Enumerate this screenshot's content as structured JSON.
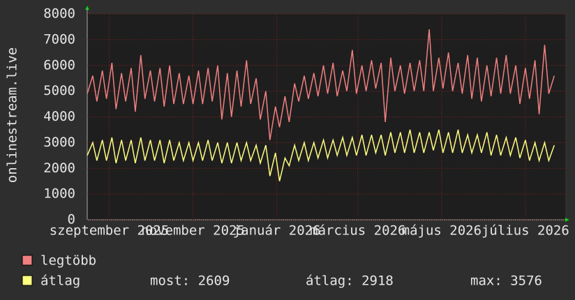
{
  "chart_data": {
    "type": "line",
    "y_label": "onlinestream.live",
    "x": [
      0,
      4,
      7,
      11,
      14,
      18,
      21,
      25,
      28,
      32,
      35,
      39,
      42,
      46,
      49,
      53,
      56,
      60,
      63,
      67,
      70,
      74,
      77,
      81,
      84,
      88,
      91,
      95,
      98,
      102,
      105,
      109,
      112,
      116,
      119,
      123,
      126,
      130,
      133,
      137,
      140,
      144,
      147,
      151,
      154,
      158,
      161,
      165,
      168,
      172,
      175,
      179,
      182,
      186,
      189,
      193,
      196,
      200,
      203,
      207,
      210,
      214,
      217,
      221,
      224,
      228,
      231,
      235,
      238,
      242,
      245,
      249,
      252,
      256,
      259,
      263,
      266,
      270,
      273,
      277,
      280,
      284,
      287,
      291,
      294,
      298,
      301,
      305,
      308,
      312,
      315,
      319,
      322,
      326,
      329,
      333,
      336,
      340
    ],
    "xlim": [
      0,
      348
    ],
    "xticks": [
      {
        "value": 16,
        "label": "szeptember 2025"
      },
      {
        "value": 77,
        "label": "november 2025"
      },
      {
        "value": 138,
        "label": "január 2026"
      },
      {
        "value": 197,
        "label": "március 2026"
      },
      {
        "value": 258,
        "label": "május 2026"
      },
      {
        "value": 319,
        "label": "július 2026"
      }
    ],
    "ylim": [
      0,
      8000
    ],
    "yticks": [
      0,
      1000,
      2000,
      3000,
      4000,
      5000,
      6000,
      7000,
      8000
    ],
    "grid": true,
    "series": [
      {
        "name": "legtöbb",
        "color": "#f08080",
        "values": [
          4900,
          5600,
          4600,
          5800,
          4700,
          6100,
          4300,
          5700,
          4600,
          5900,
          4200,
          6400,
          4700,
          5800,
          4600,
          5900,
          4400,
          6000,
          4500,
          5700,
          4500,
          5600,
          4500,
          5800,
          4500,
          5900,
          4600,
          6000,
          3900,
          5700,
          4000,
          5800,
          4400,
          6200,
          4500,
          5500,
          3900,
          5000,
          3100,
          4400,
          3600,
          4800,
          3800,
          5300,
          4600,
          5600,
          4700,
          5700,
          4800,
          6000,
          4900,
          6100,
          4800,
          5800,
          5000,
          6600,
          4900,
          6000,
          5000,
          6200,
          5100,
          6100,
          3800,
          6300,
          5000,
          6000,
          4900,
          6100,
          5000,
          6200,
          5000,
          7400,
          5000,
          6300,
          5100,
          6500,
          5000,
          6100,
          4900,
          6400,
          4700,
          6300,
          4600,
          6000,
          4800,
          6300,
          4900,
          6400,
          4900,
          6000,
          4500,
          5900,
          4700,
          6200,
          4100,
          6800,
          4900,
          5600
        ]
      },
      {
        "name": "átlag",
        "color": "#ffff80",
        "values": [
          2500,
          3000,
          2300,
          3100,
          2300,
          3200,
          2200,
          3100,
          2300,
          3100,
          2200,
          3200,
          2300,
          3100,
          2300,
          3100,
          2200,
          3100,
          2300,
          3000,
          2300,
          3000,
          2300,
          3000,
          2300,
          3100,
          2300,
          3000,
          2200,
          3000,
          2200,
          3000,
          2300,
          3000,
          2300,
          2900,
          2200,
          2900,
          1700,
          2600,
          1500,
          2400,
          2100,
          2900,
          2300,
          3000,
          2300,
          3000,
          2400,
          3100,
          2400,
          3100,
          2500,
          3200,
          2500,
          3200,
          2500,
          3300,
          2500,
          3300,
          2600,
          3300,
          2500,
          3400,
          2600,
          3400,
          2600,
          3500,
          2600,
          3400,
          2600,
          3400,
          2700,
          3500,
          2600,
          3400,
          2600,
          3500,
          2600,
          3300,
          2600,
          3300,
          2600,
          3400,
          2500,
          3300,
          2500,
          3200,
          2500,
          3200,
          2400,
          3100,
          2300,
          3000,
          2300,
          3000,
          2300,
          2900
        ]
      }
    ],
    "stats": [
      "most: 2609",
      "átlag: 2918",
      "max: 3576"
    ]
  }
}
